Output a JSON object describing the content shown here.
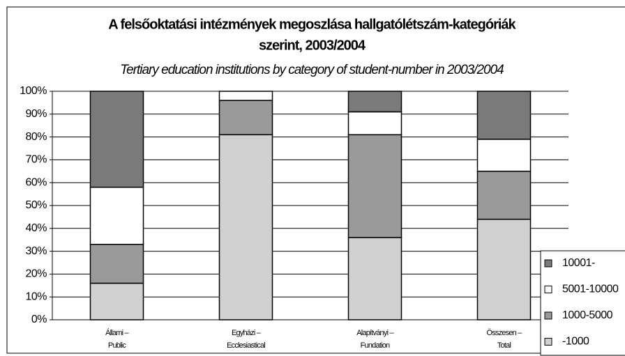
{
  "chart_data": {
    "type": "stacked_bar",
    "title": [
      "A felsőoktatási intézmények megoszlása hallgatólétszám-kategóriák",
      "szerint, 2003/2004"
    ],
    "subtitle": "Tertiary education institutions by category of student-number in 2003/2004",
    "categories": [
      [
        "Állami –",
        "Public"
      ],
      [
        "Egyházi –",
        "Ecclesiastical"
      ],
      [
        "Alapítványi –",
        "Fundation"
      ],
      [
        "Összesen –",
        "Total"
      ]
    ],
    "series": [
      {
        "name": "-1000",
        "color": "#d0d0d0",
        "values": [
          16,
          81,
          36,
          44
        ]
      },
      {
        "name": "1000-5000",
        "color": "#9a9a9a",
        "values": [
          17,
          15,
          45,
          21
        ]
      },
      {
        "name": "5001-10000",
        "color": "#ffffff",
        "values": [
          25,
          4,
          10,
          14
        ]
      },
      {
        "name": "10001-",
        "color": "#7a7a7a",
        "values": [
          42,
          0,
          9,
          21
        ]
      }
    ],
    "ylim": [
      0,
      100
    ],
    "yticks": [
      {
        "value": 0,
        "label": "0%"
      },
      {
        "value": 10,
        "label": "10%"
      },
      {
        "value": 20,
        "label": "20%"
      },
      {
        "value": 30,
        "label": "30%"
      },
      {
        "value": 40,
        "label": "40%"
      },
      {
        "value": 50,
        "label": "50%"
      },
      {
        "value": 60,
        "label": "60%"
      },
      {
        "value": 70,
        "label": "70%"
      },
      {
        "value": 80,
        "label": "80%"
      },
      {
        "value": 90,
        "label": "90%"
      },
      {
        "value": 100,
        "label": "100%"
      }
    ],
    "grid": true,
    "legend": "right"
  }
}
